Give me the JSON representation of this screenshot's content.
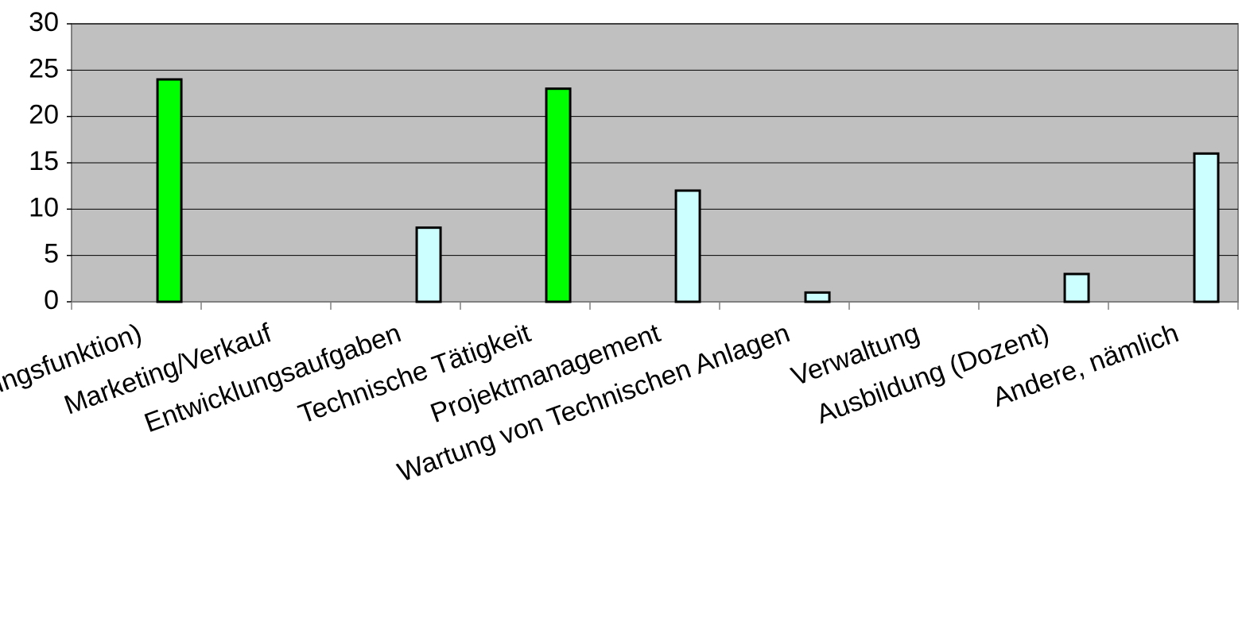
{
  "chart_data": {
    "type": "bar",
    "categories": [
      "Leitende Tätigkeit (Führungsfunktion)",
      "Marketing/Verkauf",
      "Entwicklungsaufgaben",
      "Technische Tätigkeit",
      "Projektmanagement",
      "Wartung von Technischen Anlagen",
      "Verwaltung",
      "Ausbildung (Dozent)",
      "Andere, nämlich"
    ],
    "values": [
      24,
      0,
      8,
      23,
      12,
      1,
      0,
      3,
      16
    ],
    "colors": [
      "#00ff00",
      "#ccffff",
      "#ccffff",
      "#00ff00",
      "#ccffff",
      "#ccffff",
      "#ccffff",
      "#ccffff",
      "#ccffff"
    ],
    "ylim": [
      0,
      30
    ],
    "yticks": [
      0,
      5,
      10,
      15,
      20,
      25,
      30
    ],
    "grid": true
  }
}
